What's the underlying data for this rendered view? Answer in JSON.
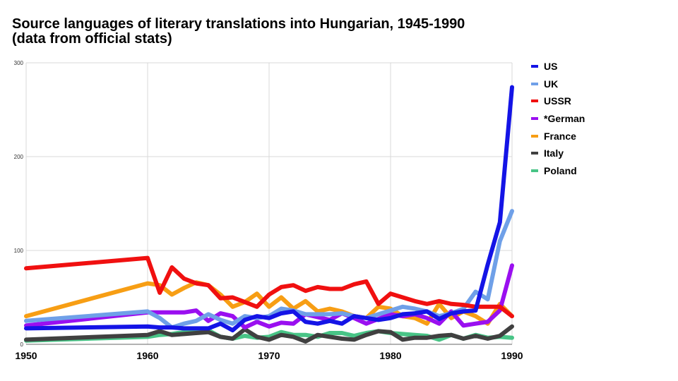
{
  "chart_data": {
    "type": "line",
    "title": "Source languages of literary translations into Hungarian, 1945-1990",
    "subtitle": "(data from official stats)",
    "xlabel": "",
    "ylabel": "",
    "xlim": [
      1950,
      1990
    ],
    "ylim": [
      0,
      300
    ],
    "x_ticks": [
      1950,
      1960,
      1970,
      1980,
      1990
    ],
    "y_ticks": [
      0,
      100,
      200,
      300
    ],
    "grid": true,
    "legend_position": "right",
    "x": [
      1950,
      1960,
      1961,
      1962,
      1963,
      1964,
      1965,
      1966,
      1967,
      1968,
      1969,
      1970,
      1971,
      1972,
      1973,
      1974,
      1975,
      1976,
      1977,
      1978,
      1979,
      1980,
      1981,
      1982,
      1983,
      1984,
      1985,
      1986,
      1987,
      1988,
      1989,
      1990
    ],
    "series": [
      {
        "name": "US",
        "color": "#1414e6",
        "values": [
          17,
          19,
          18,
          18,
          17,
          17,
          17,
          22,
          15,
          26,
          30,
          28,
          33,
          35,
          24,
          22,
          25,
          22,
          30,
          28,
          26,
          28,
          32,
          33,
          35,
          27,
          33,
          35,
          36,
          85,
          130,
          274
        ]
      },
      {
        "name": "UK",
        "color": "#6fa0e8",
        "values": [
          25,
          35,
          28,
          18,
          22,
          25,
          32,
          26,
          22,
          30,
          28,
          30,
          38,
          36,
          32,
          32,
          32,
          33,
          30,
          28,
          32,
          36,
          40,
          38,
          35,
          30,
          33,
          38,
          56,
          48,
          110,
          142
        ]
      },
      {
        "name": "USSR",
        "color": "#f01010",
        "values": [
          81,
          92,
          55,
          82,
          70,
          65,
          63,
          49,
          50,
          45,
          40,
          53,
          61,
          63,
          57,
          61,
          59,
          59,
          64,
          67,
          43,
          54,
          50,
          46,
          43,
          46,
          43,
          42,
          40,
          40,
          40,
          30
        ]
      },
      {
        "name": "*German",
        "color": "#9a0ff0",
        "values": [
          20,
          34,
          34,
          34,
          34,
          36,
          25,
          33,
          30,
          18,
          24,
          19,
          23,
          22,
          32,
          29,
          26,
          33,
          28,
          22,
          27,
          32,
          30,
          32,
          28,
          22,
          35,
          20,
          22,
          24,
          36,
          84
        ]
      },
      {
        "name": "France",
        "color": "#f79e14",
        "values": [
          30,
          65,
          63,
          53,
          60,
          66,
          63,
          53,
          40,
          45,
          54,
          40,
          50,
          38,
          46,
          35,
          38,
          35,
          30,
          28,
          40,
          38,
          30,
          28,
          22,
          43,
          28,
          35,
          30,
          22,
          43,
          30
        ]
      },
      {
        "name": "Italy",
        "color": "#404040",
        "values": [
          5,
          10,
          14,
          10,
          11,
          12,
          13,
          8,
          6,
          16,
          8,
          5,
          10,
          8,
          3,
          10,
          8,
          6,
          5,
          10,
          14,
          13,
          5,
          7,
          7,
          9,
          10,
          6,
          9,
          6,
          9,
          19
        ]
      },
      {
        "name": "Poland",
        "color": "#48c486",
        "values": [
          4,
          8,
          10,
          11,
          13,
          14,
          15,
          8,
          6,
          9,
          7,
          8,
          13,
          10,
          10,
          8,
          12,
          12,
          9,
          12,
          14,
          12,
          11,
          10,
          9,
          5,
          10,
          6,
          10,
          7,
          8,
          7
        ]
      }
    ]
  }
}
